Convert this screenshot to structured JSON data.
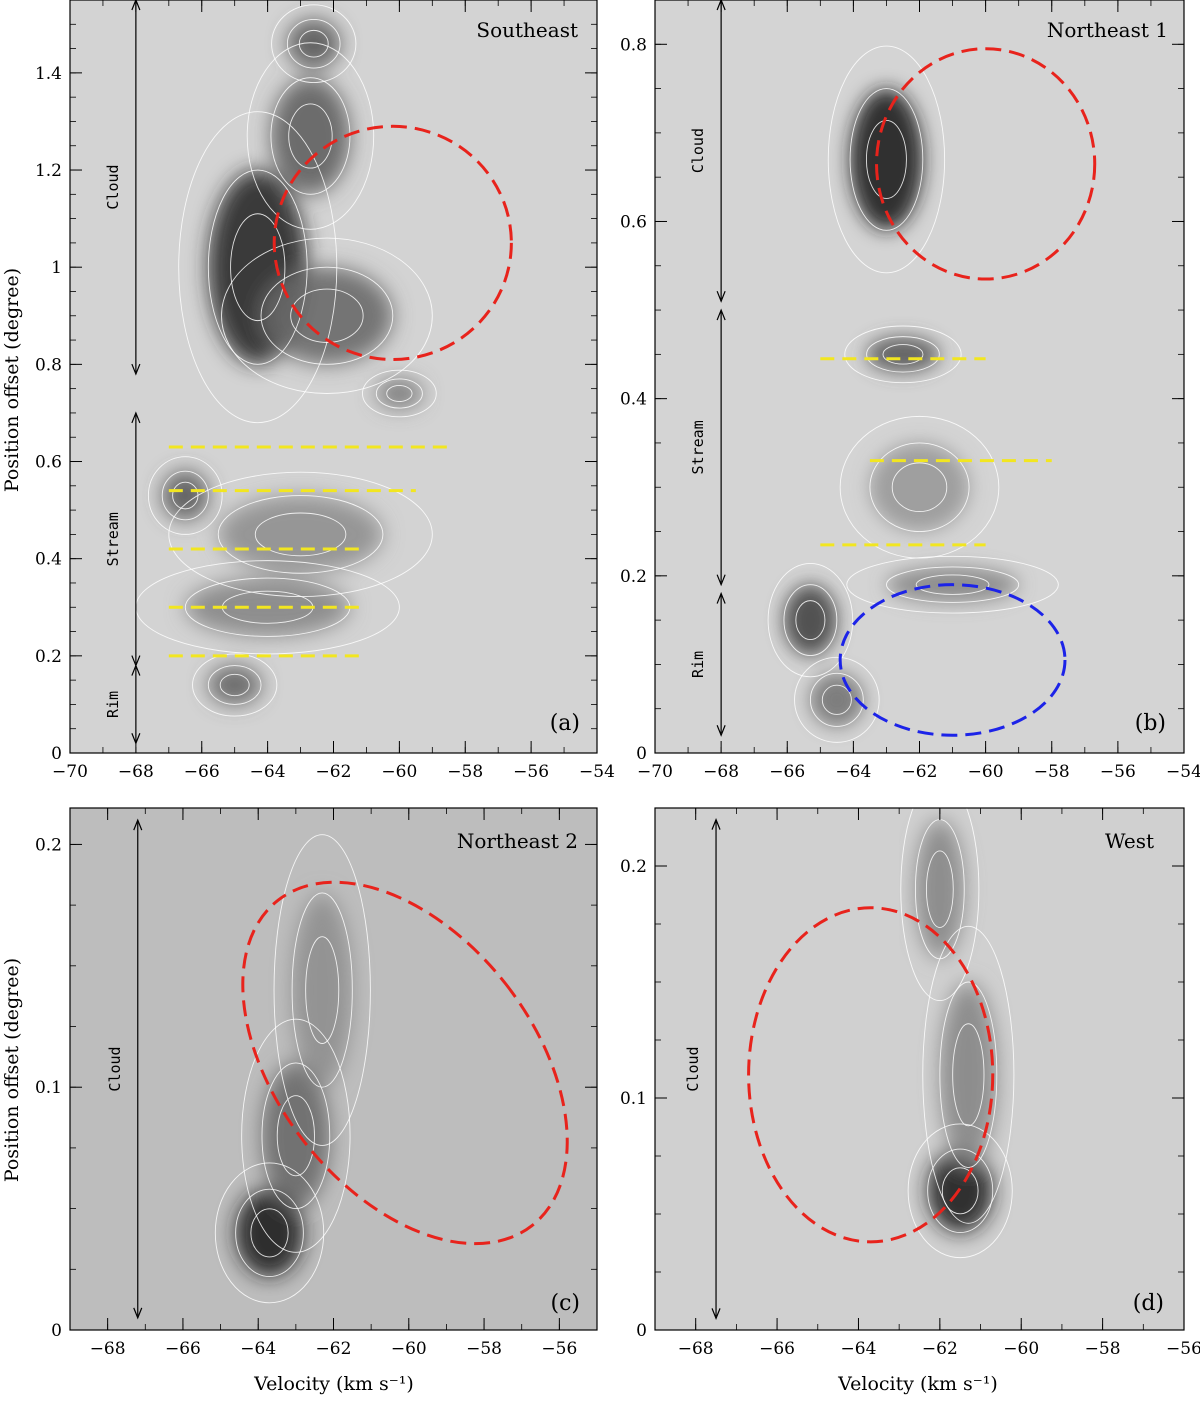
{
  "chart_data": [
    {
      "type": "heatmap",
      "panel_label": "(a)",
      "title": "Southeast",
      "xlabel": "",
      "ylabel": "Position offset (degree)",
      "xlim": [
        -70,
        -54
      ],
      "ylim": [
        0,
        1.55
      ],
      "x_ticks": [
        -70,
        -68,
        -66,
        -64,
        -62,
        -60,
        -58,
        -56,
        -54
      ],
      "y_ticks": [
        0,
        0.2,
        0.4,
        0.6,
        0.8,
        1,
        1.2,
        1.4
      ],
      "y_tick_labels": [
        "0",
        "0.2",
        "0.4",
        "0.6",
        "0.8",
        "1",
        "1.2",
        "1.4"
      ],
      "emission_peaks": [
        {
          "v": -64.3,
          "p": 1.0,
          "dv": 1.5,
          "dp": 0.2,
          "amp": 0.85
        },
        {
          "v": -62.7,
          "p": 1.27,
          "dv": 1.2,
          "dp": 0.12,
          "amp": 0.55
        },
        {
          "v": -62.6,
          "p": 1.46,
          "dv": 0.8,
          "dp": 0.05,
          "amp": 0.6
        },
        {
          "v": -62.2,
          "p": 0.9,
          "dv": 2.0,
          "dp": 0.1,
          "amp": 0.5
        },
        {
          "v": -60.0,
          "p": 0.74,
          "dv": 0.7,
          "dp": 0.03,
          "amp": 0.45
        },
        {
          "v": -66.5,
          "p": 0.53,
          "dv": 0.7,
          "dp": 0.05,
          "amp": 0.6
        },
        {
          "v": -65.0,
          "p": 0.14,
          "dv": 0.8,
          "dp": 0.04,
          "amp": 0.55
        },
        {
          "v": -64.0,
          "p": 0.3,
          "dv": 2.5,
          "dp": 0.06,
          "amp": 0.35
        },
        {
          "v": -63.0,
          "p": 0.45,
          "dv": 2.5,
          "dp": 0.08,
          "amp": 0.3
        }
      ],
      "regions": [
        {
          "label": "Cloud",
          "y0": 0.78,
          "y1": 1.55
        },
        {
          "label": "Stream",
          "y0": 0.18,
          "y1": 0.7
        },
        {
          "label": "Rim",
          "y0": 0.02,
          "y1": 0.18
        }
      ],
      "region_arrow_x": -68,
      "ellipses": [
        {
          "color": "#e8231c",
          "cv": -60.2,
          "cp": 1.05,
          "rv": 3.6,
          "rp": 0.24
        }
      ],
      "yellow_lines": [
        {
          "p": 0.63,
          "v0": -67.0,
          "v1": -58.5
        },
        {
          "p": 0.54,
          "v0": -67.0,
          "v1": -59.5
        },
        {
          "p": 0.42,
          "v0": -67.0,
          "v1": -61.0
        },
        {
          "p": 0.3,
          "v0": -67.0,
          "v1": -61.0
        },
        {
          "p": 0.2,
          "v0": -67.0,
          "v1": -61.0
        }
      ]
    },
    {
      "type": "heatmap",
      "panel_label": "(b)",
      "title": "Northeast 1",
      "xlabel": "",
      "ylabel": "",
      "xlim": [
        -70,
        -54
      ],
      "ylim": [
        0,
        0.85
      ],
      "x_ticks": [
        -70,
        -68,
        -66,
        -64,
        -62,
        -60,
        -58,
        -56,
        -54
      ],
      "y_ticks": [
        0,
        0.2,
        0.4,
        0.6,
        0.8
      ],
      "y_tick_labels": [
        "0",
        "0.2",
        "0.4",
        "0.6",
        "0.8"
      ],
      "emission_peaks": [
        {
          "v": -63.0,
          "p": 0.67,
          "dv": 1.1,
          "dp": 0.08,
          "amp": 0.9
        },
        {
          "v": -62.5,
          "p": 0.45,
          "dv": 1.1,
          "dp": 0.02,
          "amp": 0.6
        },
        {
          "v": -65.3,
          "p": 0.15,
          "dv": 0.8,
          "dp": 0.04,
          "amp": 0.7
        },
        {
          "v": -64.5,
          "p": 0.06,
          "dv": 0.8,
          "dp": 0.03,
          "amp": 0.45
        },
        {
          "v": -61.0,
          "p": 0.19,
          "dv": 2.0,
          "dp": 0.02,
          "amp": 0.35
        },
        {
          "v": -62.0,
          "p": 0.3,
          "dv": 1.5,
          "dp": 0.05,
          "amp": 0.25
        }
      ],
      "regions": [
        {
          "label": "Cloud",
          "y0": 0.51,
          "y1": 0.85
        },
        {
          "label": "Stream",
          "y0": 0.19,
          "y1": 0.5
        },
        {
          "label": "Rim",
          "y0": 0.02,
          "y1": 0.18
        }
      ],
      "region_arrow_x": -68,
      "ellipses": [
        {
          "color": "#e8231c",
          "cv": -60.0,
          "cp": 0.665,
          "rv": 3.3,
          "rp": 0.13
        },
        {
          "color": "#1c23e8",
          "cv": -61.0,
          "cp": 0.105,
          "rv": 3.4,
          "rp": 0.085
        }
      ],
      "yellow_lines": [
        {
          "p": 0.445,
          "v0": -65.0,
          "v1": -60.0
        },
        {
          "p": 0.33,
          "v0": -63.5,
          "v1": -58.0
        },
        {
          "p": 0.235,
          "v0": -65.0,
          "v1": -60.0
        }
      ]
    },
    {
      "type": "heatmap",
      "panel_label": "(c)",
      "title": "Northeast 2",
      "xlabel": "Velocity (km s⁻¹)",
      "ylabel": "Position offset (degree)",
      "xlim": [
        -69,
        -55
      ],
      "ylim": [
        0,
        0.215
      ],
      "x_ticks": [
        -68,
        -66,
        -64,
        -62,
        -60,
        -58,
        -56
      ],
      "y_ticks": [
        0,
        0.1,
        0.2
      ],
      "y_tick_labels": [
        "0",
        "0.1",
        "0.2"
      ],
      "emission_peaks": [
        {
          "v": -63.7,
          "p": 0.04,
          "dv": 0.9,
          "dp": 0.018,
          "amp": 0.9
        },
        {
          "v": -63.0,
          "p": 0.08,
          "dv": 0.9,
          "dp": 0.03,
          "amp": 0.5
        },
        {
          "v": -62.3,
          "p": 0.14,
          "dv": 0.8,
          "dp": 0.04,
          "amp": 0.3
        }
      ],
      "regions": [
        {
          "label": "Cloud",
          "y0": 0.005,
          "y1": 0.21
        }
      ],
      "region_arrow_x": -67.2,
      "ellipses": [
        {
          "color": "#e8231c",
          "cv": -60.1,
          "cp": 0.11,
          "rv": 3.4,
          "rp": 0.085,
          "tilt_deg": -38
        }
      ],
      "yellow_lines": []
    },
    {
      "type": "heatmap",
      "panel_label": "(d)",
      "title": "West",
      "xlabel": "Velocity (km s⁻¹)",
      "ylabel": "",
      "xlim": [
        -69,
        -56
      ],
      "ylim": [
        0,
        0.225
      ],
      "x_ticks": [
        -68,
        -66,
        -64,
        -62,
        -60,
        -58,
        -56
      ],
      "y_ticks": [
        0,
        0.1,
        0.2
      ],
      "y_tick_labels": [
        "0",
        "0.1",
        "0.2"
      ],
      "emission_peaks": [
        {
          "v": -61.5,
          "p": 0.06,
          "dv": 0.8,
          "dp": 0.018,
          "amp": 0.9
        },
        {
          "v": -61.3,
          "p": 0.11,
          "dv": 0.7,
          "dp": 0.04,
          "amp": 0.35
        },
        {
          "v": -62.0,
          "p": 0.19,
          "dv": 0.6,
          "dp": 0.03,
          "amp": 0.35
        }
      ],
      "regions": [
        {
          "label": "Cloud",
          "y0": 0.005,
          "y1": 0.22
        }
      ],
      "region_arrow_x": -67.5,
      "ellipses": [
        {
          "color": "#e8231c",
          "cv": -63.7,
          "cp": 0.11,
          "rv": 3.0,
          "rp": 0.072
        }
      ],
      "yellow_lines": []
    }
  ]
}
